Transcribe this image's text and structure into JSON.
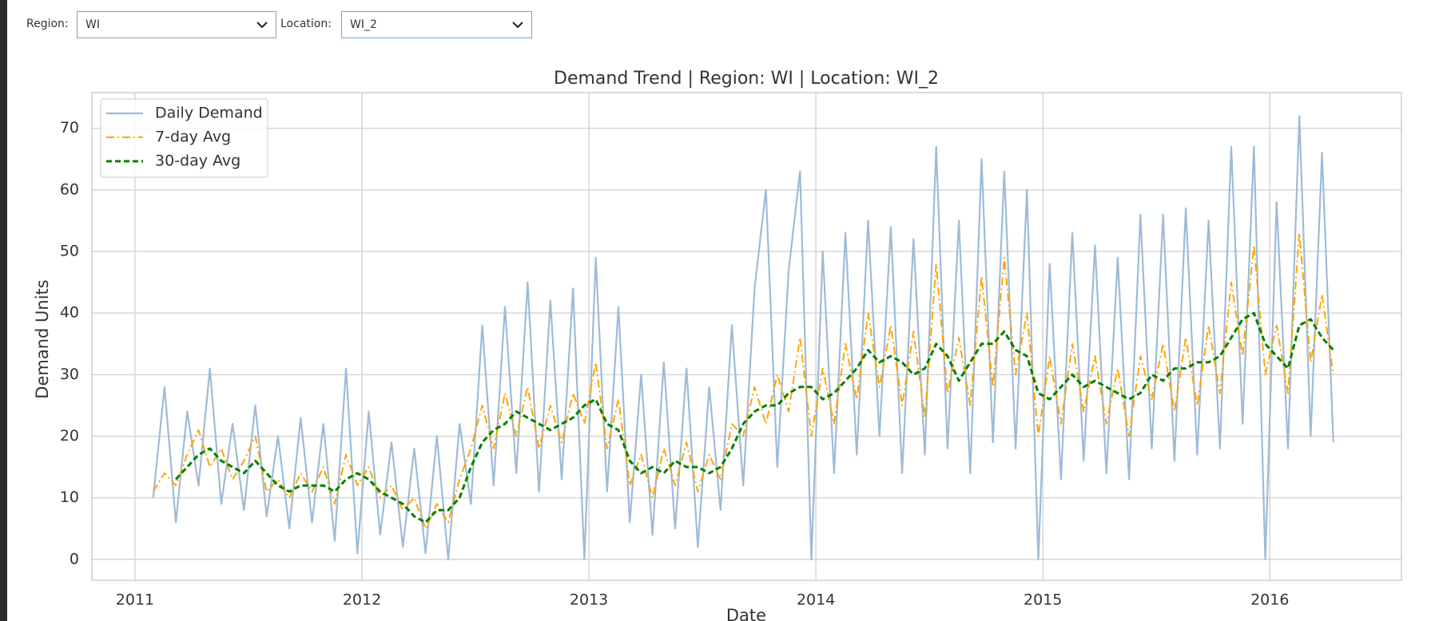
{
  "controls": {
    "region": {
      "label": "Region:",
      "value": "WI"
    },
    "location": {
      "label": "Location:",
      "value": "WI_2"
    }
  },
  "chart_data": {
    "type": "line",
    "title": "Demand Trend | Region: WI | Location: WI_2",
    "x_label": "Date",
    "y_label": "Demand Units",
    "x": [
      2011.08,
      2011.13,
      2011.18,
      2011.23,
      2011.28,
      2011.33,
      2011.38,
      2011.43,
      2011.48,
      2011.53,
      2011.58,
      2011.63,
      2011.68,
      2011.73,
      2011.78,
      2011.83,
      2011.88,
      2011.93,
      2011.98,
      2012.03,
      2012.08,
      2012.13,
      2012.18,
      2012.23,
      2012.28,
      2012.33,
      2012.38,
      2012.43,
      2012.48,
      2012.53,
      2012.58,
      2012.63,
      2012.68,
      2012.73,
      2012.78,
      2012.83,
      2012.88,
      2012.93,
      2012.98,
      2013.03,
      2013.08,
      2013.13,
      2013.18,
      2013.23,
      2013.28,
      2013.33,
      2013.38,
      2013.43,
      2013.48,
      2013.53,
      2013.58,
      2013.63,
      2013.68,
      2013.73,
      2013.78,
      2013.83,
      2013.88,
      2013.93,
      2013.98,
      2014.03,
      2014.08,
      2014.13,
      2014.18,
      2014.23,
      2014.28,
      2014.33,
      2014.38,
      2014.43,
      2014.48,
      2014.53,
      2014.58,
      2014.63,
      2014.68,
      2014.73,
      2014.78,
      2014.83,
      2014.88,
      2014.93,
      2014.98,
      2015.03,
      2015.08,
      2015.13,
      2015.18,
      2015.23,
      2015.28,
      2015.33,
      2015.38,
      2015.43,
      2015.48,
      2015.53,
      2015.58,
      2015.63,
      2015.68,
      2015.73,
      2015.78,
      2015.83,
      2015.88,
      2015.93,
      2015.98,
      2016.03,
      2016.08,
      2016.13,
      2016.18,
      2016.23,
      2016.28
    ],
    "series": [
      {
        "name": "Daily Demand",
        "color": "#9ebbd7",
        "style": "solid",
        "values": [
          10,
          28,
          6,
          24,
          12,
          31,
          9,
          22,
          8,
          25,
          7,
          20,
          5,
          23,
          6,
          22,
          3,
          31,
          1,
          24,
          4,
          19,
          2,
          18,
          1,
          20,
          0,
          22,
          9,
          38,
          12,
          41,
          14,
          45,
          11,
          42,
          13,
          44,
          0,
          49,
          11,
          41,
          6,
          30,
          4,
          32,
          5,
          31,
          2,
          28,
          8,
          38,
          12,
          44,
          60,
          15,
          47,
          63,
          0,
          50,
          14,
          53,
          17,
          55,
          20,
          54,
          14,
          52,
          17,
          67,
          18,
          55,
          14,
          65,
          19,
          63,
          18,
          60,
          0,
          48,
          13,
          53,
          16,
          51,
          14,
          49,
          13,
          56,
          18,
          56,
          16,
          57,
          17,
          55,
          18,
          67,
          22,
          67,
          0,
          58,
          18,
          72,
          20,
          66,
          19
        ]
      },
      {
        "name": "7-day Avg",
        "color": "#ffa500",
        "style": "dashdot",
        "values": [
          11,
          14,
          12,
          17,
          21,
          15,
          18,
          13,
          16,
          20,
          11,
          13,
          10,
          14,
          11,
          15,
          9,
          17,
          12,
          15,
          10,
          12,
          8,
          10,
          5,
          9,
          6,
          13,
          18,
          25,
          18,
          27,
          20,
          28,
          18,
          25,
          19,
          27,
          22,
          32,
          18,
          26,
          12,
          17,
          10,
          18,
          12,
          19,
          11,
          17,
          13,
          22,
          20,
          28,
          22,
          30,
          24,
          36,
          20,
          31,
          22,
          35,
          26,
          40,
          28,
          38,
          25,
          37,
          23,
          48,
          27,
          36,
          25,
          46,
          28,
          49,
          30,
          40,
          20,
          33,
          22,
          35,
          24,
          33,
          22,
          31,
          20,
          33,
          26,
          35,
          24,
          36,
          25,
          38,
          27,
          45,
          33,
          51,
          30,
          38,
          27,
          53,
          32,
          43,
          30
        ]
      },
      {
        "name": "30-day Avg",
        "color": "#008000",
        "style": "dashed",
        "values": [
          null,
          null,
          13,
          15,
          17,
          18,
          16,
          15,
          14,
          16,
          14,
          12,
          11,
          12,
          12,
          12,
          11,
          13,
          14,
          13,
          11,
          10,
          9,
          7,
          6,
          8,
          8,
          10,
          15,
          19,
          21,
          22,
          24,
          23,
          22,
          21,
          22,
          23,
          25,
          26,
          22,
          21,
          16,
          14,
          15,
          14,
          16,
          15,
          15,
          14,
          15,
          18,
          22,
          24,
          25,
          25,
          27,
          28,
          28,
          26,
          27,
          29,
          31,
          34,
          32,
          33,
          32,
          30,
          31,
          35,
          33,
          29,
          32,
          35,
          35,
          37,
          34,
          33,
          27,
          26,
          28,
          30,
          28,
          29,
          28,
          27,
          26,
          27,
          30,
          29,
          31,
          31,
          32,
          32,
          33,
          36,
          39,
          40,
          35,
          33,
          31,
          38,
          39,
          36,
          34
        ]
      }
    ],
    "xlim": [
      2010.81,
      2016.58
    ],
    "ylim": [
      -3.4,
      75.8
    ],
    "xticks": [
      2011,
      2012,
      2013,
      2014,
      2015,
      2016
    ],
    "yticks": [
      0,
      10,
      20,
      30,
      40,
      50,
      60,
      70
    ],
    "grid": true,
    "legend": "upper left"
  }
}
